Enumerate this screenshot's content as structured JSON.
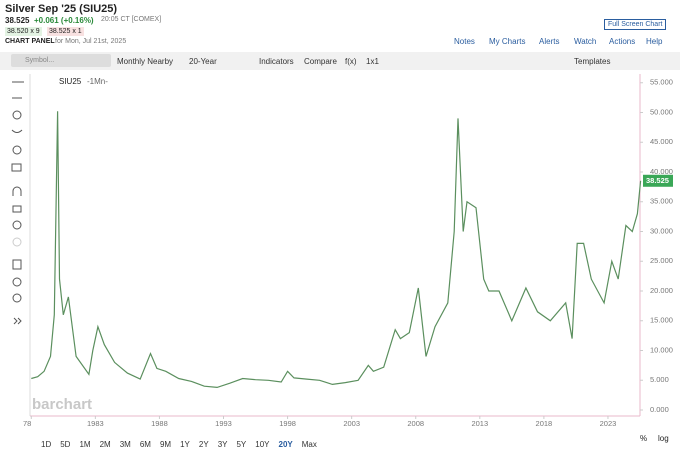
{
  "header": {
    "title": "Silver Sep '25 (SIU25)",
    "last": "38.525",
    "change": "+0.061 (+0.16%)",
    "time": "20:05 CT [COMEX]",
    "bid": "38.520 x 9",
    "ask": "38.525 x 1",
    "panel": "CHART PANEL",
    "date": "for Mon, Jul 21st, 2025",
    "fullscreen": "Full Screen Chart",
    "links": [
      "Notes",
      "My Charts",
      "Alerts",
      "Watch",
      "Actions",
      "Help"
    ]
  },
  "toolbar": {
    "symbol_placeholder": "Symbol...",
    "items": [
      "Monthly Nearby",
      "20-Year",
      "Indicators",
      "Compare",
      "f(x)",
      "1x1"
    ],
    "templates": "Templates"
  },
  "legend": {
    "symbol": "SIU25",
    "interval": "-1Mn-"
  },
  "watermark": "barchart",
  "periods": [
    "1D",
    "5D",
    "1M",
    "2M",
    "3M",
    "6M",
    "9M",
    "1Y",
    "2Y",
    "3Y",
    "5Y",
    "10Y",
    "20Y",
    "Max"
  ],
  "options": [
    "%",
    "log"
  ],
  "chart_data": {
    "type": "line",
    "x": [
      1978.0,
      1978.5,
      1979.0,
      1979.5,
      1979.8,
      1980.05,
      1980.2,
      1980.5,
      1980.9,
      1981.5,
      1982.5,
      1982.8,
      1983.2,
      1983.7,
      1984.5,
      1985.5,
      1986.5,
      1987.3,
      1987.8,
      1988.5,
      1989.5,
      1990.5,
      1991.5,
      1992.5,
      1993.5,
      1994.5,
      1995.5,
      1996.5,
      1997.5,
      1998.0,
      1998.5,
      1999.5,
      2000.5,
      2001.5,
      2002.5,
      2003.5,
      2004.3,
      2004.7,
      2005.5,
      2006.4,
      2006.8,
      2007.5,
      2008.2,
      2008.8,
      2009.5,
      2010.5,
      2011.0,
      2011.3,
      2011.7,
      2012.0,
      2012.7,
      2013.3,
      2013.7,
      2014.5,
      2015.5,
      2016.6,
      2017.5,
      2018.5,
      2019.7,
      2020.2,
      2020.6,
      2021.1,
      2021.7,
      2022.7,
      2023.3,
      2023.8,
      2024.4,
      2024.9,
      2025.3,
      2025.55
    ],
    "series": [
      {
        "name": "SIU25",
        "color": "#5b8f5e",
        "values": [
          5.3,
          5.6,
          6.5,
          9,
          16,
          50.2,
          22,
          16,
          19,
          9,
          6,
          10,
          14,
          11,
          8,
          6.2,
          5.2,
          9.5,
          7,
          6.5,
          5.3,
          4.8,
          4,
          3.8,
          4.5,
          5.3,
          5.1,
          5,
          4.7,
          6.5,
          5.4,
          5.2,
          5,
          4.3,
          4.6,
          5,
          7.5,
          6.5,
          7.2,
          13.5,
          12,
          13,
          20.5,
          9,
          14,
          18,
          30,
          49,
          30,
          35,
          34,
          22,
          20,
          20,
          15,
          20.5,
          16.5,
          15,
          18,
          12,
          28,
          28,
          22,
          18,
          25,
          22,
          31,
          30,
          33,
          38.525
        ]
      }
    ],
    "xlim": [
      1977.9,
      2025.5
    ],
    "xticks": [
      {
        "value": 1978,
        "label": "78"
      },
      1983,
      1988,
      1993,
      1998,
      2003,
      2008,
      2013,
      2018,
      2023
    ],
    "ylim": [
      0,
      56
    ],
    "yticks": [
      {
        "value": 0,
        "label": "0.000"
      },
      {
        "value": 5,
        "label": "5.000"
      },
      {
        "value": 10,
        "label": "10.000"
      },
      {
        "value": 15,
        "label": "15.000"
      },
      {
        "value": 20,
        "label": "20.000"
      },
      {
        "value": 25,
        "label": "25.000"
      },
      {
        "value": 30,
        "label": "30.000"
      },
      {
        "value": 35,
        "label": "35.000"
      },
      {
        "value": 40,
        "label": "40.000"
      },
      {
        "value": 45,
        "label": "45.000"
      },
      {
        "value": 50,
        "label": "50.000"
      },
      {
        "value": 55,
        "label": "55.000"
      }
    ]
  }
}
